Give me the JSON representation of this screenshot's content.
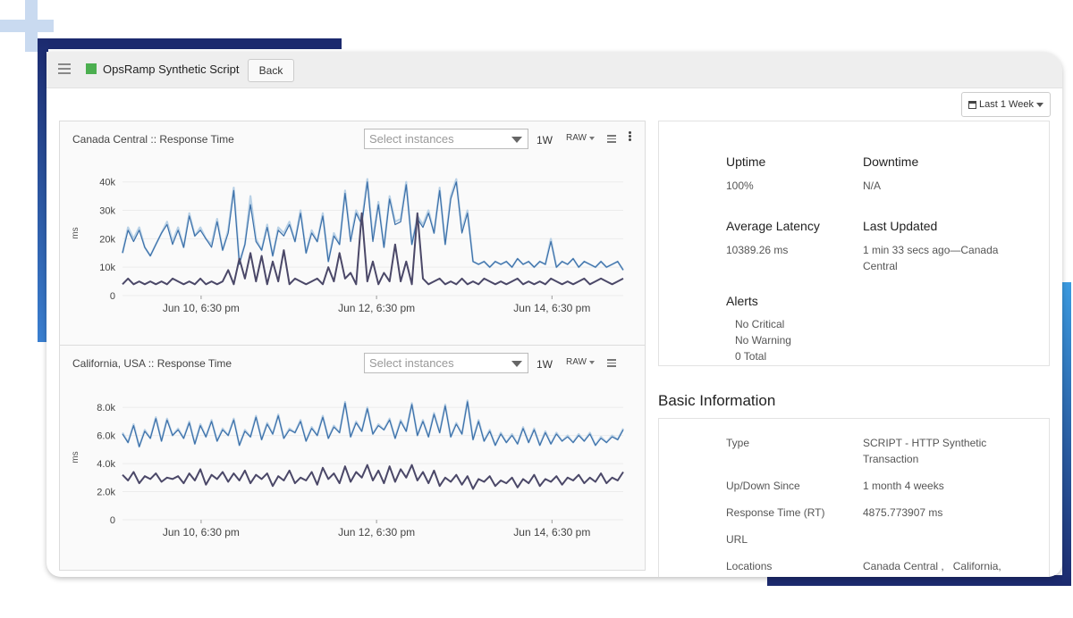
{
  "app": {
    "title": "OpsRamp Synthetic Script",
    "back_label": "Back"
  },
  "toolbar": {
    "range_label": "Last 1 Week"
  },
  "charts_panel": {
    "select_placeholder": "Select instances",
    "window_label": "1W",
    "raw_label": "RAW"
  },
  "chart_data": [
    {
      "type": "line",
      "title": "Canada Central :: Response Time",
      "ylabel": "ms",
      "ylim": [
        0,
        44000
      ],
      "y_ticks": [
        "0",
        "10k",
        "20k",
        "30k",
        "40k"
      ],
      "y_tick_values": [
        0,
        10000,
        20000,
        30000,
        40000
      ],
      "x_ticks": [
        "Jun 10, 6:30 pm",
        "Jun 12, 6:30 pm",
        "Jun 14, 6:30 pm"
      ],
      "x_tick_positions": [
        0.165,
        0.465,
        0.765
      ],
      "series": [
        {
          "color": "#b9d1e6",
          "values": [
            15000,
            24000,
            20000,
            24000,
            17000,
            14000,
            18000,
            22000,
            26000,
            19000,
            24000,
            17000,
            29000,
            21000,
            24000,
            20000,
            18000,
            27000,
            16000,
            23000,
            38000,
            12000,
            18000,
            35000,
            20000,
            16000,
            25000,
            14000,
            24000,
            22000,
            26000,
            19000,
            30000,
            15000,
            23000,
            19000,
            29000,
            12000,
            22000,
            18000,
            37000,
            20000,
            30000,
            26000,
            41000,
            20000,
            33000,
            17000,
            35000,
            26000,
            27000,
            40000,
            18000,
            28000,
            25000,
            30000,
            22000,
            38000,
            18000,
            35000,
            41000,
            23000,
            30000,
            12000,
            11000,
            12000,
            10000,
            12000,
            11000,
            12000,
            10000,
            13000,
            11000,
            12000,
            10000,
            12000,
            11000,
            20000,
            10000,
            12000,
            11000,
            13000,
            10000,
            12000,
            11000,
            10000,
            12000,
            10000,
            11000,
            12000,
            9000
          ]
        },
        {
          "color": "#3b6fa8",
          "values": [
            15000,
            23000,
            19000,
            23000,
            17000,
            14000,
            18000,
            22000,
            25000,
            18000,
            23000,
            17000,
            28000,
            21000,
            23000,
            20000,
            17000,
            26000,
            16000,
            22000,
            37000,
            11000,
            18000,
            32000,
            19000,
            16000,
            24000,
            14000,
            23000,
            21000,
            25000,
            19000,
            29000,
            15000,
            22000,
            19000,
            28000,
            12000,
            21000,
            18000,
            36000,
            19000,
            29000,
            25000,
            40000,
            19000,
            32000,
            17000,
            34000,
            25000,
            26000,
            39000,
            18000,
            27000,
            24000,
            29000,
            22000,
            37000,
            18000,
            34000,
            40000,
            22000,
            29000,
            12000,
            11000,
            12000,
            10000,
            12000,
            11000,
            12000,
            10000,
            13000,
            11000,
            12000,
            10000,
            12000,
            11000,
            19000,
            10000,
            12000,
            11000,
            13000,
            10000,
            12000,
            11000,
            10000,
            12000,
            10000,
            11000,
            12000,
            9000
          ]
        },
        {
          "color": "#4b4868",
          "values": [
            4000,
            6000,
            4000,
            5000,
            4000,
            5000,
            4000,
            5000,
            4000,
            6000,
            5000,
            4000,
            5000,
            4000,
            6000,
            4000,
            5000,
            4000,
            5000,
            9000,
            4000,
            13000,
            6000,
            15000,
            5000,
            14000,
            4000,
            12000,
            5000,
            16000,
            4000,
            6000,
            5000,
            4000,
            5000,
            6000,
            4000,
            10000,
            5000,
            15000,
            6000,
            8000,
            4000,
            29000,
            5000,
            12000,
            4000,
            8000,
            5000,
            18000,
            5000,
            12000,
            4000,
            29000,
            6000,
            4000,
            5000,
            6000,
            4000,
            5000,
            4000,
            6000,
            4000,
            5000,
            4000,
            6000,
            5000,
            4000,
            5000,
            4000,
            5000,
            6000,
            4000,
            5000,
            4000,
            5000,
            4000,
            6000,
            5000,
            4000,
            5000,
            4000,
            5000,
            6000,
            4000,
            5000,
            6000,
            5000,
            4000,
            5000,
            6000
          ]
        }
      ]
    },
    {
      "type": "line",
      "title": "California, USA :: Response Time",
      "ylabel": "ms",
      "ylim": [
        0,
        8900
      ],
      "y_ticks": [
        "0",
        "2.0k",
        "4.0k",
        "6.0k",
        "8.0k"
      ],
      "y_tick_values": [
        0,
        2000,
        4000,
        6000,
        8000
      ],
      "x_ticks": [
        "Jun 10, 6:30 pm",
        "Jun 12, 6:30 pm",
        "Jun 14, 6:30 pm"
      ],
      "x_tick_positions": [
        0.165,
        0.465,
        0.765
      ],
      "series": [
        {
          "color": "#b9d1e6",
          "values": [
            6200,
            5500,
            6800,
            5200,
            6400,
            5800,
            7300,
            5600,
            7200,
            6000,
            6500,
            5800,
            7000,
            5400,
            6800,
            5900,
            7100,
            5600,
            6500,
            6000,
            7200,
            5300,
            6400,
            5900,
            7400,
            5700,
            6900,
            6100,
            7500,
            5800,
            6500,
            6200,
            7100,
            5600,
            6600,
            6000,
            7400,
            5800,
            6700,
            6200,
            8400,
            5900,
            7000,
            6300,
            8000,
            6100,
            6800,
            6400,
            7200,
            5800,
            7100,
            6300,
            8300,
            6000,
            7100,
            5900,
            7600,
            6200,
            8200,
            5900,
            6900,
            6100,
            8500,
            5700,
            7100,
            5600,
            6400,
            5300,
            6200,
            5500,
            6100,
            5400,
            6600,
            5500,
            6500,
            5300,
            6300,
            5400,
            6200,
            5600,
            6000,
            5500,
            6100,
            5600,
            6200,
            5300,
            5900,
            5500,
            6000,
            5700,
            6500
          ]
        },
        {
          "color": "#3b6fa8",
          "values": [
            6100,
            5500,
            6700,
            5200,
            6300,
            5800,
            7200,
            5600,
            7100,
            6000,
            6400,
            5800,
            6900,
            5400,
            6700,
            5900,
            7000,
            5600,
            6400,
            6000,
            7100,
            5300,
            6300,
            5900,
            7300,
            5700,
            6800,
            6100,
            7400,
            5800,
            6400,
            6200,
            7000,
            5600,
            6500,
            6000,
            7300,
            5800,
            6600,
            6200,
            8300,
            5900,
            6900,
            6300,
            7900,
            6100,
            6700,
            6400,
            7100,
            5800,
            7000,
            6300,
            8200,
            6000,
            7000,
            5900,
            7500,
            6200,
            8100,
            5900,
            6800,
            6100,
            8400,
            5700,
            7000,
            5600,
            6300,
            5300,
            6100,
            5500,
            6000,
            5400,
            6500,
            5500,
            6400,
            5300,
            6200,
            5400,
            6100,
            5600,
            5900,
            5500,
            6000,
            5600,
            6100,
            5300,
            5800,
            5500,
            5900,
            5700,
            6400
          ]
        },
        {
          "color": "#4b4868",
          "values": [
            3200,
            2800,
            3400,
            2600,
            3100,
            2900,
            3300,
            2700,
            3000,
            2900,
            3100,
            2600,
            3300,
            2800,
            3600,
            2500,
            3200,
            2900,
            3400,
            2700,
            3300,
            2800,
            3500,
            2600,
            3200,
            2900,
            3300,
            2400,
            3100,
            2800,
            3500,
            2600,
            3000,
            2800,
            3400,
            2500,
            3700,
            2900,
            3300,
            2600,
            3800,
            2700,
            3400,
            3000,
            3900,
            2800,
            3500,
            2600,
            3800,
            2700,
            3600,
            3000,
            3900,
            2800,
            3400,
            2600,
            3500,
            2400,
            3000,
            2700,
            3200,
            2500,
            3100,
            2200,
            2900,
            2700,
            3100,
            2400,
            2800,
            2600,
            3000,
            2300,
            2900,
            2600,
            3200,
            2400,
            2900,
            2700,
            3100,
            2500,
            3000,
            2800,
            3200,
            2600,
            3000,
            2700,
            3300,
            2600,
            3000,
            2800,
            3400
          ]
        }
      ]
    }
  ],
  "summary": {
    "uptime_label": "Uptime",
    "uptime_value": "100%",
    "downtime_label": "Downtime",
    "downtime_value": "N/A",
    "latency_label": "Average Latency",
    "latency_value": "10389.26 ms",
    "updated_label": "Last Updated",
    "updated_value": "1 min 33 secs ago—Canada Central",
    "alerts_label": "Alerts",
    "alerts": [
      "No Critical",
      "No Warning",
      "0 Total"
    ]
  },
  "basic_info": {
    "heading": "Basic Information",
    "rows": [
      {
        "label": "Type",
        "value": "SCRIPT - HTTP Synthetic Transaction"
      },
      {
        "label": "Up/Down Since",
        "value": "1 month 4 weeks"
      },
      {
        "label": "Response Time (RT)",
        "value": "4875.773907 ms"
      },
      {
        "label": "URL",
        "value": ""
      },
      {
        "label": "Locations",
        "value": "Canada Central ,   California,"
      }
    ]
  }
}
